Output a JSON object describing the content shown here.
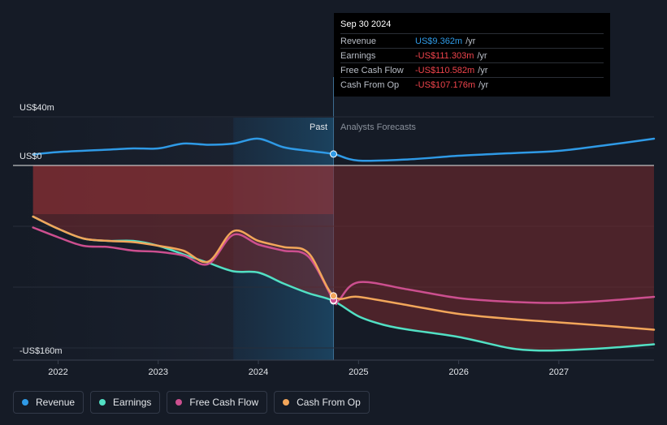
{
  "tooltip": {
    "date": "Sep 30 2024",
    "rows": [
      {
        "label": "Revenue",
        "value": "US$9.362m",
        "unit": "/yr",
        "color": "blue"
      },
      {
        "label": "Earnings",
        "value": "-US$111.303m",
        "unit": "/yr",
        "color": "red"
      },
      {
        "label": "Free Cash Flow",
        "value": "-US$110.582m",
        "unit": "/yr",
        "color": "red"
      },
      {
        "label": "Cash From Op",
        "value": "-US$107.176m",
        "unit": "/yr",
        "color": "red"
      }
    ]
  },
  "chart_data": {
    "type": "line",
    "y_top_label": "US$40m",
    "y_zero_label": "US$0",
    "y_bottom_label": "-US$160m",
    "past_label": "Past",
    "forecast_label": "Analysts Forecasts",
    "x_ticks": [
      "2022",
      "2023",
      "2024",
      "2025",
      "2026",
      "2027"
    ],
    "ylim": [
      -160,
      40
    ],
    "xlim": [
      2021.55,
      2027.95
    ],
    "past_end": 2024.75,
    "highlight_start": 2023.75,
    "series": [
      {
        "name": "Revenue",
        "color": "#2f9ae6",
        "points": [
          [
            2021.75,
            9
          ],
          [
            2022.0,
            11
          ],
          [
            2022.5,
            13
          ],
          [
            2022.75,
            14
          ],
          [
            2023.0,
            14
          ],
          [
            2023.25,
            18
          ],
          [
            2023.5,
            17
          ],
          [
            2023.75,
            18
          ],
          [
            2024.0,
            22
          ],
          [
            2024.25,
            15
          ],
          [
            2024.5,
            12
          ],
          [
            2024.75,
            9.4
          ],
          [
            2025.0,
            4
          ],
          [
            2025.5,
            5
          ],
          [
            2026.0,
            8
          ],
          [
            2026.5,
            10
          ],
          [
            2027.0,
            12
          ],
          [
            2027.5,
            17
          ],
          [
            2027.95,
            22
          ]
        ]
      },
      {
        "name": "Earnings",
        "color": "#52e0c4",
        "points": [
          [
            2021.75,
            -42
          ],
          [
            2022.0,
            -52
          ],
          [
            2022.25,
            -60
          ],
          [
            2022.5,
            -62
          ],
          [
            2022.75,
            -62
          ],
          [
            2023.0,
            -66
          ],
          [
            2023.25,
            -73
          ],
          [
            2023.5,
            -80
          ],
          [
            2023.75,
            -87
          ],
          [
            2024.0,
            -88
          ],
          [
            2024.25,
            -97
          ],
          [
            2024.5,
            -105
          ],
          [
            2024.75,
            -111.3
          ],
          [
            2025.0,
            -124
          ],
          [
            2025.25,
            -131
          ],
          [
            2025.5,
            -135
          ],
          [
            2026.0,
            -141
          ],
          [
            2026.5,
            -150
          ],
          [
            2026.75,
            -152
          ],
          [
            2027.0,
            -152
          ],
          [
            2027.5,
            -150
          ],
          [
            2027.95,
            -147
          ]
        ]
      },
      {
        "name": "Free Cash Flow",
        "color": "#cc4f8f",
        "points": [
          [
            2021.75,
            -51
          ],
          [
            2022.0,
            -59
          ],
          [
            2022.25,
            -66
          ],
          [
            2022.5,
            -67
          ],
          [
            2022.75,
            -70
          ],
          [
            2023.0,
            -71
          ],
          [
            2023.25,
            -74
          ],
          [
            2023.5,
            -81
          ],
          [
            2023.75,
            -57
          ],
          [
            2024.0,
            -65
          ],
          [
            2024.25,
            -70
          ],
          [
            2024.5,
            -75
          ],
          [
            2024.75,
            -110.6
          ],
          [
            2024.8,
            -111
          ],
          [
            2025.0,
            -96
          ],
          [
            2025.5,
            -102
          ],
          [
            2026.0,
            -109
          ],
          [
            2026.5,
            -112
          ],
          [
            2027.0,
            -113
          ],
          [
            2027.5,
            -111
          ],
          [
            2027.95,
            -108
          ]
        ]
      },
      {
        "name": "Cash From Op",
        "color": "#f2a65a",
        "points": [
          [
            2021.75,
            -42
          ],
          [
            2022.0,
            -52
          ],
          [
            2022.25,
            -60
          ],
          [
            2022.5,
            -62
          ],
          [
            2022.75,
            -63
          ],
          [
            2023.0,
            -66
          ],
          [
            2023.25,
            -70
          ],
          [
            2023.5,
            -79
          ],
          [
            2023.75,
            -54
          ],
          [
            2024.0,
            -62
          ],
          [
            2024.25,
            -67
          ],
          [
            2024.5,
            -72
          ],
          [
            2024.75,
            -107.2
          ],
          [
            2025.0,
            -108
          ],
          [
            2025.5,
            -115
          ],
          [
            2026.0,
            -122
          ],
          [
            2026.5,
            -126
          ],
          [
            2027.0,
            -129
          ],
          [
            2027.5,
            -132
          ],
          [
            2027.95,
            -135
          ]
        ]
      }
    ]
  },
  "legend": [
    {
      "label": "Revenue",
      "color": "#2f9ae6"
    },
    {
      "label": "Earnings",
      "color": "#52e0c4"
    },
    {
      "label": "Free Cash Flow",
      "color": "#cc4f8f"
    },
    {
      "label": "Cash From Op",
      "color": "#f2a65a"
    }
  ]
}
